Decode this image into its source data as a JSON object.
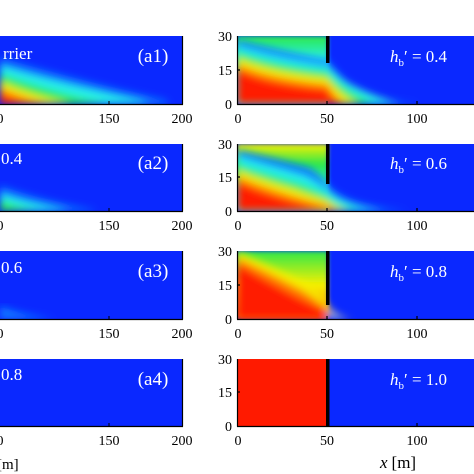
{
  "chart_data": [
    {
      "type": "heatmap",
      "panel_label": "(a1)",
      "annotation": "rrier",
      "x_ticks": [
        0,
        150,
        200
      ],
      "x_tick_labels": [
        "0",
        "150",
        "200"
      ],
      "xlim": [
        -20,
        200
      ]
    },
    {
      "type": "heatmap",
      "panel_label": "(a2)",
      "annotation": "0.4",
      "x_ticks": [
        0,
        150,
        200
      ],
      "x_tick_labels": [
        "0",
        "150",
        "200"
      ],
      "xlim": [
        -20,
        200
      ]
    },
    {
      "type": "heatmap",
      "panel_label": "(a3)",
      "annotation": "0.6",
      "x_ticks": [
        0,
        150,
        200
      ],
      "x_tick_labels": [
        "0",
        "150",
        "200"
      ],
      "xlim": [
        -20,
        200
      ]
    },
    {
      "type": "heatmap",
      "panel_label": "(a4)",
      "annotation": "0.8",
      "x_ticks": [
        0,
        150,
        200
      ],
      "x_tick_labels": [
        "0",
        "150",
        "200"
      ],
      "xlim": [
        -20,
        200
      ],
      "xlabel": "[m]"
    },
    {
      "type": "heatmap",
      "annotation_symbol": "h",
      "annotation_sub": "b",
      "annotation_rest": "′ = 0.4",
      "barrier_x": 50,
      "barrier_bottom": 18,
      "x_ticks": [
        0,
        50,
        100
      ],
      "x_tick_labels": [
        "0",
        "50",
        "100"
      ],
      "y_ticks": [
        0,
        15,
        30
      ],
      "y_tick_labels": [
        "0",
        "15",
        "30"
      ],
      "xlim": [
        0,
        125
      ],
      "ylim": [
        0,
        30
      ]
    },
    {
      "type": "heatmap",
      "annotation_symbol": "h",
      "annotation_sub": "b",
      "annotation_rest": "′ = 0.6",
      "barrier_x": 50,
      "barrier_bottom": 12,
      "x_ticks": [
        0,
        50,
        100
      ],
      "x_tick_labels": [
        "0",
        "50",
        "100"
      ],
      "y_ticks": [
        0,
        15,
        30
      ],
      "y_tick_labels": [
        "0",
        "15",
        "30"
      ],
      "xlim": [
        0,
        125
      ],
      "ylim": [
        0,
        30
      ]
    },
    {
      "type": "heatmap",
      "annotation_symbol": "h",
      "annotation_sub": "b",
      "annotation_rest": "′ = 0.8",
      "barrier_x": 50,
      "barrier_bottom": 6,
      "x_ticks": [
        0,
        50,
        100
      ],
      "x_tick_labels": [
        "0",
        "50",
        "100"
      ],
      "y_ticks": [
        0,
        15,
        30
      ],
      "y_tick_labels": [
        "0",
        "15",
        "30"
      ],
      "xlim": [
        0,
        125
      ],
      "ylim": [
        0,
        30
      ]
    },
    {
      "type": "heatmap",
      "annotation_symbol": "h",
      "annotation_sub": "b",
      "annotation_rest": "′ = 1.0",
      "barrier_x": 50,
      "barrier_bottom": 0,
      "x_ticks": [
        0,
        50,
        100
      ],
      "x_tick_labels": [
        "0",
        "50",
        "100"
      ],
      "y_ticks": [
        0,
        15,
        30
      ],
      "y_tick_labels": [
        "0",
        "15",
        "30"
      ],
      "xlim": [
        0,
        125
      ],
      "ylim": [
        0,
        30
      ],
      "xlabel_symbol": "x",
      "xlabel_unit": "[m]"
    }
  ],
  "colors": {
    "red": "#ff1a00",
    "orange": "#ff7a00",
    "yellow": "#f5f000",
    "green": "#2ee84a",
    "cyan": "#28f0e8",
    "light_blue": "#0a78ff",
    "blue": "#0a28ff",
    "barrier": "#000000"
  }
}
